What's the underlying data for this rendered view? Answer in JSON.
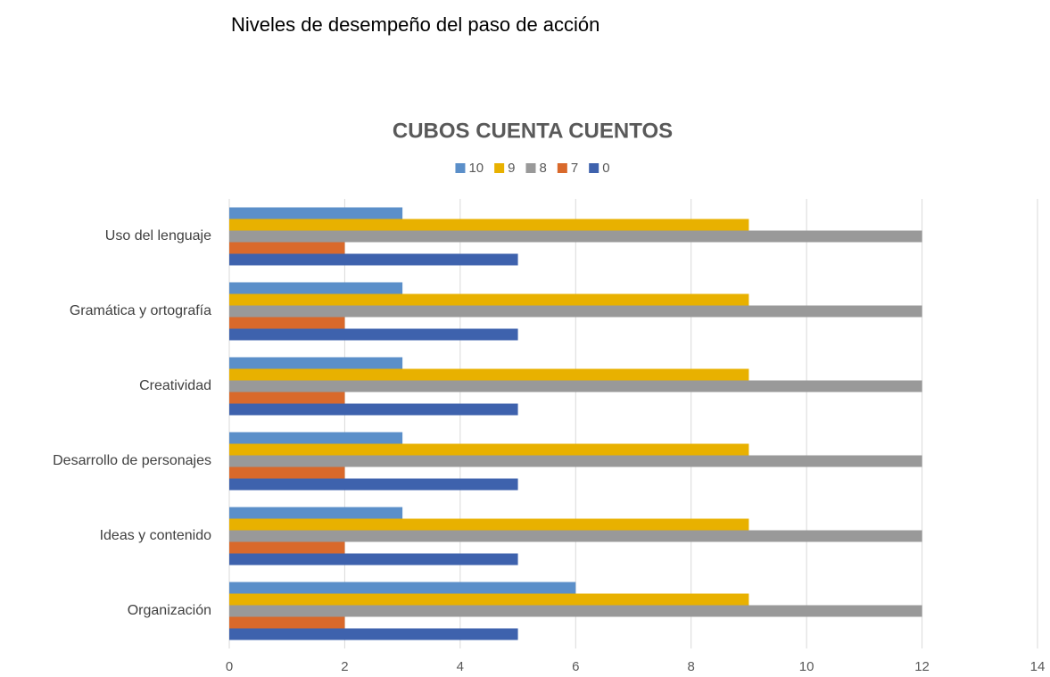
{
  "heading": "Niveles de desempeño del paso de acción",
  "chart_data": {
    "type": "hbar",
    "title": "CUBOS CUENTA CUENTOS",
    "categories": [
      "Uso del lenguaje",
      "Gramática y ortografía",
      "Creatividad",
      "Desarrollo de personajes",
      "Ideas y contenido",
      "Organización"
    ],
    "series": [
      {
        "name": "10",
        "color": "#5b8fc9",
        "values": [
          3,
          3,
          3,
          3,
          3,
          6
        ]
      },
      {
        "name": "9",
        "color": "#e8b100",
        "values": [
          9,
          9,
          9,
          9,
          9,
          9
        ]
      },
      {
        "name": "8",
        "color": "#999999",
        "values": [
          12,
          12,
          12,
          12,
          12,
          12
        ]
      },
      {
        "name": "7",
        "color": "#d9692b",
        "values": [
          2,
          2,
          2,
          2,
          2,
          2
        ]
      },
      {
        "name": "0",
        "color": "#3e62ad",
        "values": [
          5,
          5,
          5,
          5,
          5,
          5
        ]
      }
    ],
    "xlim": [
      0,
      14
    ],
    "xticks": [
      0,
      2,
      4,
      6,
      8,
      10,
      12,
      14
    ],
    "grid": true,
    "legend": "top"
  }
}
